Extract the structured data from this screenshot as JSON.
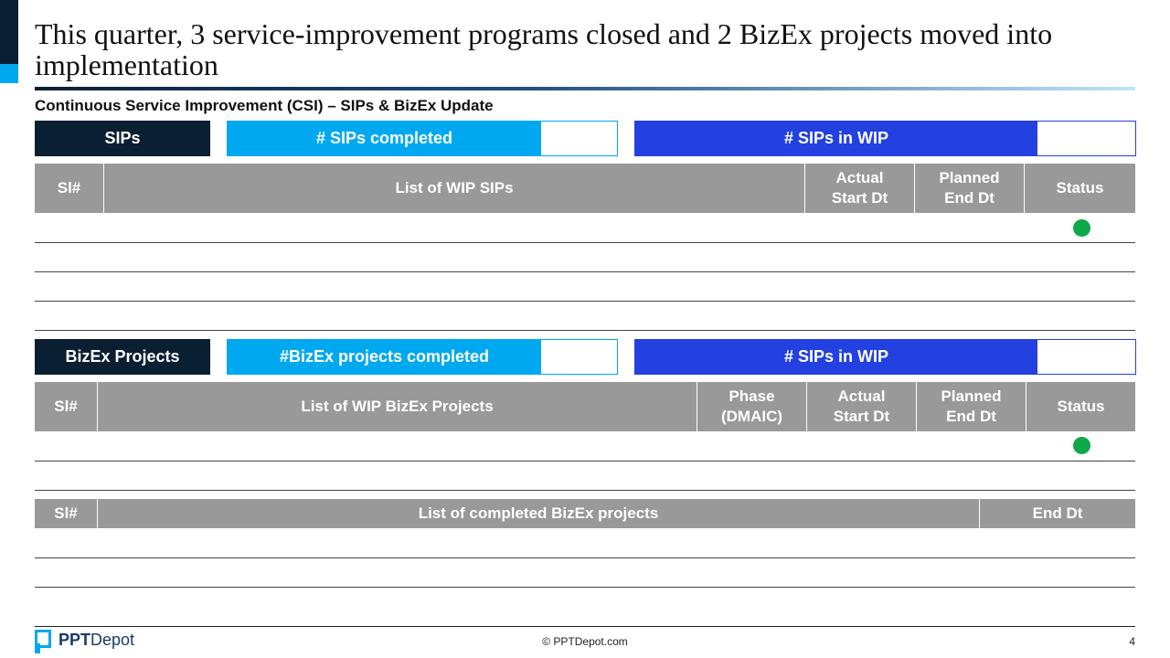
{
  "slide": {
    "title": "This quarter, 3 service-improvement programs closed and 2 BizEx projects moved into implementation",
    "subtitle": "Continuous Service Improvement (CSI) – SIPs & BizEx Update"
  },
  "sips": {
    "label": "SIPs",
    "completed_label": "# SIPs completed",
    "wip_label": "# SIPs in WIP",
    "columns": [
      "Sl#",
      "List of WIP SIPs",
      "Actual Start Dt",
      "Planned End Dt",
      "Status"
    ],
    "status_colors": {
      "green": "#0fa84a"
    }
  },
  "bizex": {
    "label": "BizEx Projects",
    "completed_label": "#BizEx projects completed",
    "wip_label": "# SIPs in WIP",
    "columns": [
      "Sl#",
      "List of WIP BizEx Projects",
      "Phase (DMAIC)",
      "Actual Start  Dt",
      "Planned End Dt",
      "Status"
    ]
  },
  "completed": {
    "columns": [
      "Sl#",
      "List of completed BizEx projects",
      "End Dt"
    ]
  },
  "footer": {
    "logo_bold": "PPT",
    "logo_rest": "Depot",
    "copyright": "© PPTDepot.com",
    "page": "4"
  },
  "colors": {
    "navy": "#0b1f33",
    "cyan": "#00a8f0",
    "royal_blue": "#2340e0",
    "header_gray": "#999999"
  }
}
